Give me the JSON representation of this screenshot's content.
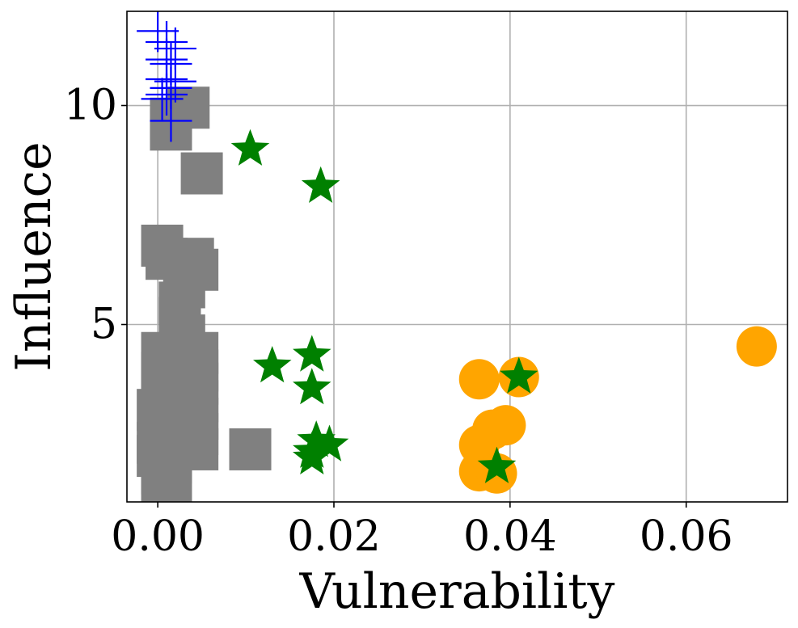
{
  "chart_data": {
    "type": "scatter",
    "title": "",
    "xlabel": "Vulnerability",
    "ylabel": "Influence",
    "xlim": [
      -0.0035,
      0.0715
    ],
    "ylim": [
      0.95,
      12.15
    ],
    "xticks": [
      0.0,
      0.02,
      0.04,
      0.06
    ],
    "xtick_labels": [
      "0.00",
      "0.02",
      "0.04",
      "0.06"
    ],
    "yticks": [
      5,
      10
    ],
    "ytick_labels": [
      "5",
      "10"
    ],
    "grid": true,
    "series": [
      {
        "name": "gray-squares",
        "marker": "square",
        "color": "#808080",
        "points": [
          [
            0.0015,
            9.7
          ],
          [
            0.0035,
            9.95
          ],
          [
            0.0015,
            9.45
          ],
          [
            0.005,
            8.45
          ],
          [
            0.0005,
            6.8
          ],
          [
            0.001,
            6.5
          ],
          [
            0.004,
            6.5
          ],
          [
            0.0045,
            6.25
          ],
          [
            0.003,
            5.85
          ],
          [
            0.0025,
            5.5
          ],
          [
            0.0025,
            5.15
          ],
          [
            0.003,
            4.75
          ],
          [
            0.0005,
            4.35
          ],
          [
            0.0045,
            4.35
          ],
          [
            0.0015,
            4.15
          ],
          [
            0.0045,
            3.95
          ],
          [
            0.0005,
            3.9
          ],
          [
            0.002,
            3.7
          ],
          [
            0.0045,
            3.65
          ],
          [
            0.0005,
            3.45
          ],
          [
            0.0025,
            3.35
          ],
          [
            0.0045,
            3.25
          ],
          [
            0.0,
            3.05
          ],
          [
            0.0025,
            2.95
          ],
          [
            0.0045,
            2.85
          ],
          [
            0.0005,
            2.75
          ],
          [
            0.002,
            2.55
          ],
          [
            0.0045,
            2.5
          ],
          [
            0.0,
            2.3
          ],
          [
            0.002,
            2.2
          ],
          [
            0.0045,
            2.15
          ],
          [
            0.0,
            2.0
          ],
          [
            0.0015,
            1.85
          ],
          [
            0.0005,
            1.6
          ],
          [
            0.0015,
            1.35
          ],
          [
            0.0005,
            1.1
          ],
          [
            0.0105,
            2.15
          ]
        ]
      },
      {
        "name": "blue-plus",
        "marker": "plus",
        "color": "#0000ff",
        "points": [
          [
            0.0,
            11.7
          ],
          [
            0.001,
            11.45
          ],
          [
            0.002,
            11.3
          ],
          [
            0.001,
            11.05
          ],
          [
            0.0015,
            10.95
          ],
          [
            0.001,
            10.6
          ],
          [
            0.002,
            10.55
          ],
          [
            0.0015,
            10.4
          ],
          [
            0.001,
            10.25
          ],
          [
            0.0005,
            10.15
          ],
          [
            0.0015,
            9.65
          ]
        ]
      },
      {
        "name": "green-stars",
        "marker": "star",
        "color": "#008000",
        "points": [
          [
            0.0105,
            9.0
          ],
          [
            0.0185,
            8.15
          ],
          [
            0.013,
            4.05
          ],
          [
            0.0175,
            4.3
          ],
          [
            0.0175,
            3.55
          ],
          [
            0.018,
            2.35
          ],
          [
            0.0195,
            2.25
          ],
          [
            0.0175,
            2.1
          ],
          [
            0.0175,
            1.95
          ],
          [
            0.041,
            3.8
          ],
          [
            0.0385,
            1.75
          ]
        ]
      },
      {
        "name": "orange-circles",
        "marker": "circle",
        "color": "#ffa500",
        "points": [
          [
            0.0365,
            3.75
          ],
          [
            0.041,
            3.8
          ],
          [
            0.0395,
            2.7
          ],
          [
            0.038,
            2.6
          ],
          [
            0.0365,
            2.25
          ],
          [
            0.0365,
            1.65
          ],
          [
            0.0385,
            1.6
          ],
          [
            0.068,
            4.5
          ]
        ]
      }
    ]
  }
}
